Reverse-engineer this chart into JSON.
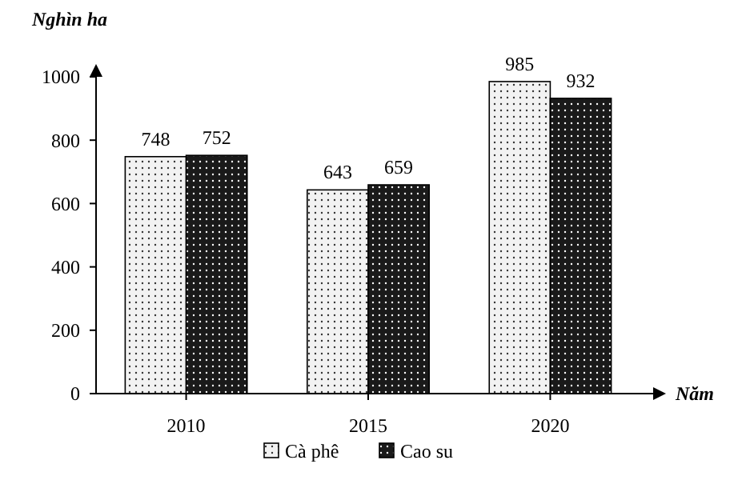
{
  "chart_data": {
    "type": "bar",
    "ylabel": "Nghìn ha",
    "xlabel": "Năm",
    "categories": [
      "2010",
      "2015",
      "2020"
    ],
    "series": [
      {
        "name": "Cà phê",
        "color": "#f2f2f2",
        "values": [
          748,
          643,
          985
        ]
      },
      {
        "name": "Cao su",
        "color": "#1a1a1a",
        "values": [
          752,
          659,
          932
        ]
      }
    ],
    "ylim": [
      0,
      1000
    ],
    "yticks": [
      0,
      200,
      400,
      600,
      800,
      1000
    ],
    "data_labels": true,
    "legend": "bottom",
    "grid": false
  }
}
